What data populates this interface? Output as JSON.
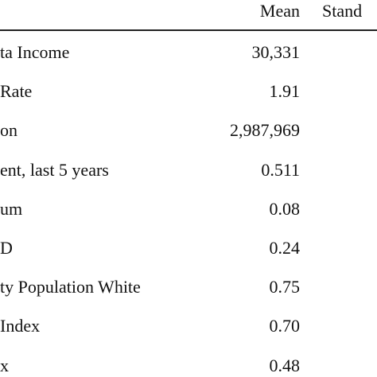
{
  "table": {
    "header": [
      "Mean",
      "Stand"
    ],
    "rows": [
      [
        "ta Income",
        "30,331"
      ],
      [
        "Rate",
        "1.91"
      ],
      [
        "on",
        "2,987,969"
      ],
      [
        "ent, last 5 years",
        "0.511"
      ],
      [
        "um",
        "0.08"
      ],
      [
        "D",
        "0.24"
      ],
      [
        "ty Population White",
        "0.75"
      ],
      [
        "Index",
        "0.70"
      ],
      [
        "x",
        "0.48"
      ]
    ]
  }
}
